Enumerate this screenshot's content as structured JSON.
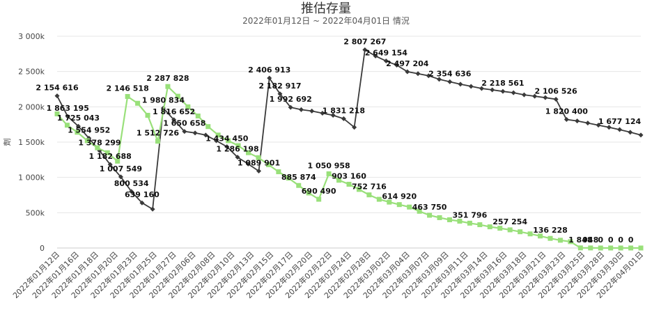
{
  "chart_data": {
    "type": "line",
    "title": "推估存量",
    "subtitle": "2022年01月12日 ~ 2022年04月01日 情況",
    "ylabel": "劑",
    "ylim": [
      0,
      3000000
    ],
    "yticks": [
      0,
      500000,
      1000000,
      1500000,
      2000000,
      2500000,
      3000000
    ],
    "ytick_labels": [
      "0",
      "500k",
      "1 000k",
      "1 500k",
      "2 000k",
      "2 500k",
      "3 000k"
    ],
    "grid": true,
    "x_start": "2022-01-12",
    "x_end": "2022-04-01",
    "x_tick_labels": [
      "2022年01月12日",
      "2022年01月16日",
      "2022年01月18日",
      "2022年01月20日",
      "2022年01月23日",
      "2022年01月25日",
      "2022年01月27日",
      "2022年02月06日",
      "2022年02月08日",
      "2022年02月10日",
      "2022年02月13日",
      "2022年02月15日",
      "2022年02月17日",
      "2022年02月20日",
      "2022年02月22日",
      "2022年02月24日",
      "2022年02月28日",
      "2022年03月02日",
      "2022年03月04日",
      "2022年03月07日",
      "2022年03月09日",
      "2022年03月11日",
      "2022年03月14日",
      "2022年03月16日",
      "2022年03月18日",
      "2022年03月21日",
      "2022年03月23日",
      "2022年03月25日",
      "2022年03月28日",
      "2022年03月30日",
      "2022年04月01日"
    ],
    "series": [
      {
        "color": "#3a3a3a",
        "marker": "diamond",
        "values": [
          2154616,
          1863195,
          1725043,
          1554952,
          1378299,
          1182688,
          1007549,
          800534,
          639160,
          550000,
          1980834,
          1816652,
          1650658,
          1630000,
          1600000,
          1520000,
          1434450,
          1286198,
          1190000,
          1089901,
          2406913,
          2182917,
          1992692,
          1960000,
          1940000,
          1910000,
          1880000,
          1831218,
          1710000,
          2807267,
          2720000,
          2649154,
          2590000,
          2497204,
          2470000,
          2440000,
          2390000,
          2354636,
          2320000,
          2290000,
          2260000,
          2240000,
          2218561,
          2200000,
          2170000,
          2150000,
          2130000,
          2106526,
          1820400,
          1800000,
          1770000,
          1740000,
          1710000,
          1677124,
          1640000,
          1600000
        ],
        "labels": [
          "2 154 616",
          "1 863 195",
          "1 725 043",
          "1 554 952",
          "1 378 299",
          "1 182 688",
          "1 007 549",
          "800 534",
          "639 160",
          "",
          "1 980 834",
          "1 816 652",
          "1 650 658",
          "",
          "",
          "",
          "1 434 450",
          "1 286 198",
          "",
          "1 089 901",
          "2 406 913",
          "2 182 917",
          "1 992 692",
          "",
          "",
          "",
          "",
          "1 831 218",
          "",
          "2 807 267",
          "",
          "2 649 154",
          "",
          "2 497 204",
          "",
          "",
          "",
          "2 354 636",
          "",
          "",
          "",
          "",
          "2 218 561",
          "",
          "",
          "",
          "",
          "2 106 526",
          "1 820 400",
          "",
          "",
          "",
          "",
          "1 677 124",
          "",
          ""
        ]
      },
      {
        "color": "#99e07a",
        "marker": "square",
        "values": [
          1900000,
          1740000,
          1640000,
          1520000,
          1420000,
          1350000,
          1230000,
          2146518,
          2050000,
          1880000,
          1512726,
          2287828,
          2150000,
          2000000,
          1870000,
          1720000,
          1600000,
          1520000,
          1450000,
          1350000,
          1280000,
          1180000,
          1080000,
          990000,
          885874,
          780000,
          690490,
          1050958,
          960000,
          903160,
          830000,
          752716,
          690000,
          650000,
          614920,
          580000,
          520000,
          463750,
          430000,
          400000,
          380000,
          351796,
          330000,
          300000,
          280000,
          257254,
          230000,
          200000,
          170000,
          136228,
          110000,
          90000,
          1848,
          948,
          0,
          0,
          0,
          0,
          0
        ],
        "labels": [
          "",
          "",
          "",
          "",
          "",
          "",
          "",
          "2 146 518",
          "",
          "",
          "1 512 726",
          "2 287 828",
          "",
          "",
          "",
          "",
          "",
          "",
          "",
          "",
          "",
          "",
          "",
          "",
          "885 874",
          "",
          "690 490",
          "1 050 958",
          "",
          "903 160",
          "",
          "752 716",
          "",
          "",
          "614 920",
          "",
          "",
          "463 750",
          "",
          "",
          "",
          "351 796",
          "",
          "",
          "",
          "257 254",
          "",
          "",
          "",
          "136 228",
          "",
          "",
          "1 848",
          "948",
          "0",
          "0",
          "0",
          "0",
          ""
        ]
      }
    ]
  }
}
